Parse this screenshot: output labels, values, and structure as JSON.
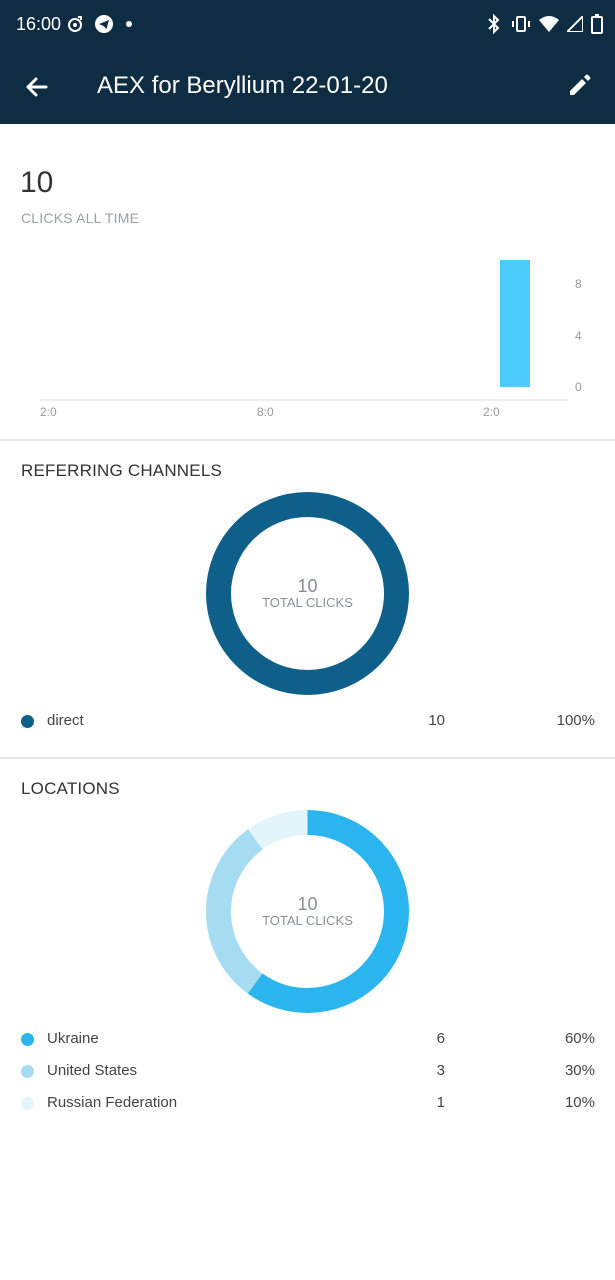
{
  "status_bar": {
    "time": "16:00"
  },
  "app_bar": {
    "title": "AEX for Beryllium 22-01-20"
  },
  "summary": {
    "total": "10",
    "label": "CLICKS ALL TIME"
  },
  "chart_data": {
    "type": "bar",
    "x": [
      "2:0",
      "8:0",
      "2:0"
    ],
    "y_ticks": [
      "8",
      "4",
      "0"
    ],
    "ylim": [
      0,
      10
    ],
    "bars": [
      {
        "position": "last",
        "value": 10
      }
    ],
    "color": "#4ccbfa"
  },
  "referring": {
    "title": "REFERRING CHANNELS",
    "center_value": "10",
    "center_label": "TOTAL CLICKS",
    "items": [
      {
        "name": "direct",
        "count": "10",
        "percent": "100%",
        "color": "#0f5f8b"
      }
    ]
  },
  "locations": {
    "title": "LOCATIONS",
    "center_value": "10",
    "center_label": "TOTAL CLICKS",
    "items": [
      {
        "name": "Ukraine",
        "count": "6",
        "percent": "60%",
        "color": "#2bb5ee"
      },
      {
        "name": "United States",
        "count": "3",
        "percent": "30%",
        "color": "#a6dcf2"
      },
      {
        "name": "Russian Federation",
        "count": "1",
        "percent": "10%",
        "color": "#e3f4fb"
      }
    ]
  }
}
